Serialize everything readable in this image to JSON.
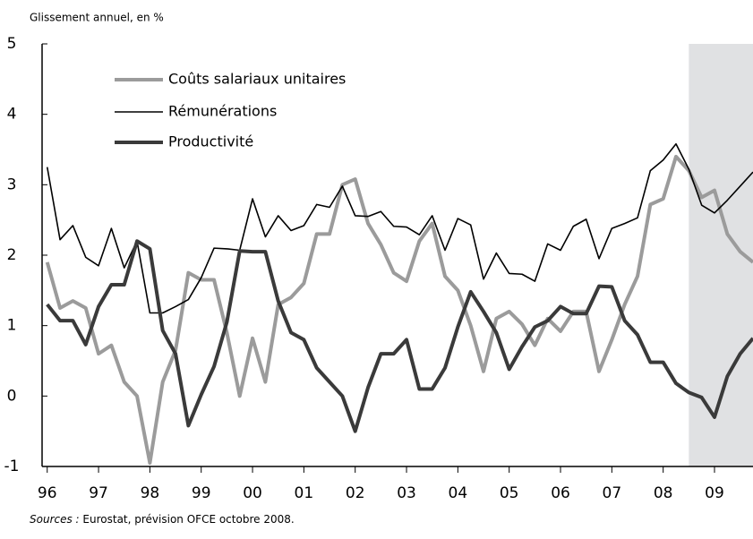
{
  "chart_data": {
    "type": "line",
    "y_axis_label": "Glissement annuel, en %",
    "source_label": "Sources :",
    "source": "Eurostat, prévision OFCE octobre 2008.",
    "x": [
      1996,
      1996.25,
      1996.5,
      1996.75,
      1997,
      1997.25,
      1997.5,
      1997.75,
      1998,
      1998.25,
      1998.5,
      1998.75,
      1999,
      1999.25,
      1999.5,
      1999.75,
      2000,
      2000.25,
      2000.5,
      2000.75,
      2001,
      2001.25,
      2001.5,
      2001.75,
      2002,
      2002.25,
      2002.5,
      2002.75,
      2003,
      2003.25,
      2003.5,
      2003.75,
      2004,
      2004.25,
      2004.5,
      2004.75,
      2005,
      2005.25,
      2005.5,
      2005.75,
      2006,
      2006.25,
      2006.5,
      2006.75,
      2007,
      2007.25,
      2007.5,
      2007.75,
      2008,
      2008.25,
      2008.5,
      2008.75,
      2009,
      2009.25,
      2009.5,
      2009.75
    ],
    "series": [
      {
        "name": "Coûts salariaux unitaires",
        "color": "#9b9b9b",
        "width": 4,
        "values": [
          1.9,
          1.25,
          1.35,
          1.25,
          0.6,
          0.72,
          0.2,
          0.0,
          -0.95,
          0.2,
          0.65,
          1.75,
          1.65,
          1.65,
          0.9,
          0.0,
          0.82,
          0.2,
          1.3,
          1.4,
          1.6,
          2.3,
          2.3,
          3.0,
          3.08,
          2.45,
          2.15,
          1.75,
          1.63,
          2.2,
          2.45,
          1.7,
          1.5,
          1.0,
          0.35,
          1.1,
          1.2,
          1.02,
          0.72,
          1.1,
          0.92,
          1.2,
          1.2,
          0.35,
          0.8,
          1.3,
          1.7,
          2.72,
          2.8,
          3.4,
          3.2,
          2.82,
          2.92,
          2.3,
          2.05,
          1.9
        ]
      },
      {
        "name": "Rémunérations",
        "color": "#000000",
        "width": 1.6,
        "values": [
          3.25,
          2.22,
          2.42,
          1.97,
          1.85,
          2.38,
          1.82,
          2.2,
          1.18,
          1.18,
          1.27,
          1.37,
          1.68,
          2.1,
          2.09,
          2.07,
          2.8,
          2.26,
          2.56,
          2.35,
          2.42,
          2.72,
          2.68,
          2.98,
          2.56,
          2.55,
          2.62,
          2.41,
          2.4,
          2.29,
          2.56,
          2.07,
          2.52,
          2.43,
          1.66,
          2.03,
          1.74,
          1.73,
          1.63,
          2.16,
          2.07,
          2.41,
          2.51,
          1.95,
          2.38,
          2.45,
          2.53,
          3.2,
          3.35,
          3.58,
          3.22,
          2.71,
          2.6,
          2.78,
          2.98,
          3.18
        ]
      },
      {
        "name": "Productivité",
        "color": "#3a3a3a",
        "width": 4,
        "values": [
          1.3,
          1.07,
          1.07,
          0.73,
          1.27,
          1.58,
          1.58,
          2.2,
          2.09,
          0.93,
          0.6,
          -0.42,
          0.02,
          0.42,
          1.05,
          2.06,
          2.05,
          2.05,
          1.35,
          0.9,
          0.8,
          0.4,
          0.2,
          0.0,
          -0.5,
          0.12,
          0.6,
          0.6,
          0.8,
          0.1,
          0.1,
          0.4,
          0.98,
          1.48,
          1.2,
          0.9,
          0.38,
          0.7,
          0.98,
          1.07,
          1.27,
          1.17,
          1.17,
          1.56,
          1.55,
          1.07,
          0.87,
          0.48,
          0.48,
          0.18,
          0.05,
          -0.02,
          -0.3,
          0.28,
          0.6,
          0.82
        ]
      }
    ],
    "xlim": [
      1995.9,
      2009.75
    ],
    "xticks": [
      {
        "value": 1996,
        "label": "96"
      },
      {
        "value": 1997,
        "label": "97"
      },
      {
        "value": 1998,
        "label": "98"
      },
      {
        "value": 1999,
        "label": "99"
      },
      {
        "value": 2000,
        "label": "00"
      },
      {
        "value": 2001,
        "label": "01"
      },
      {
        "value": 2002,
        "label": "02"
      },
      {
        "value": 2003,
        "label": "03"
      },
      {
        "value": 2004,
        "label": "04"
      },
      {
        "value": 2005,
        "label": "05"
      },
      {
        "value": 2006,
        "label": "06"
      },
      {
        "value": 2007,
        "label": "07"
      },
      {
        "value": 2008,
        "label": "08"
      },
      {
        "value": 2009,
        "label": "09"
      }
    ],
    "ylim": [
      -1,
      5
    ],
    "yticks": [
      -1,
      0,
      1,
      2,
      3,
      4,
      5
    ],
    "forecast_from": 2008.5,
    "forecast_color": "#e0e1e3",
    "grid": false
  }
}
